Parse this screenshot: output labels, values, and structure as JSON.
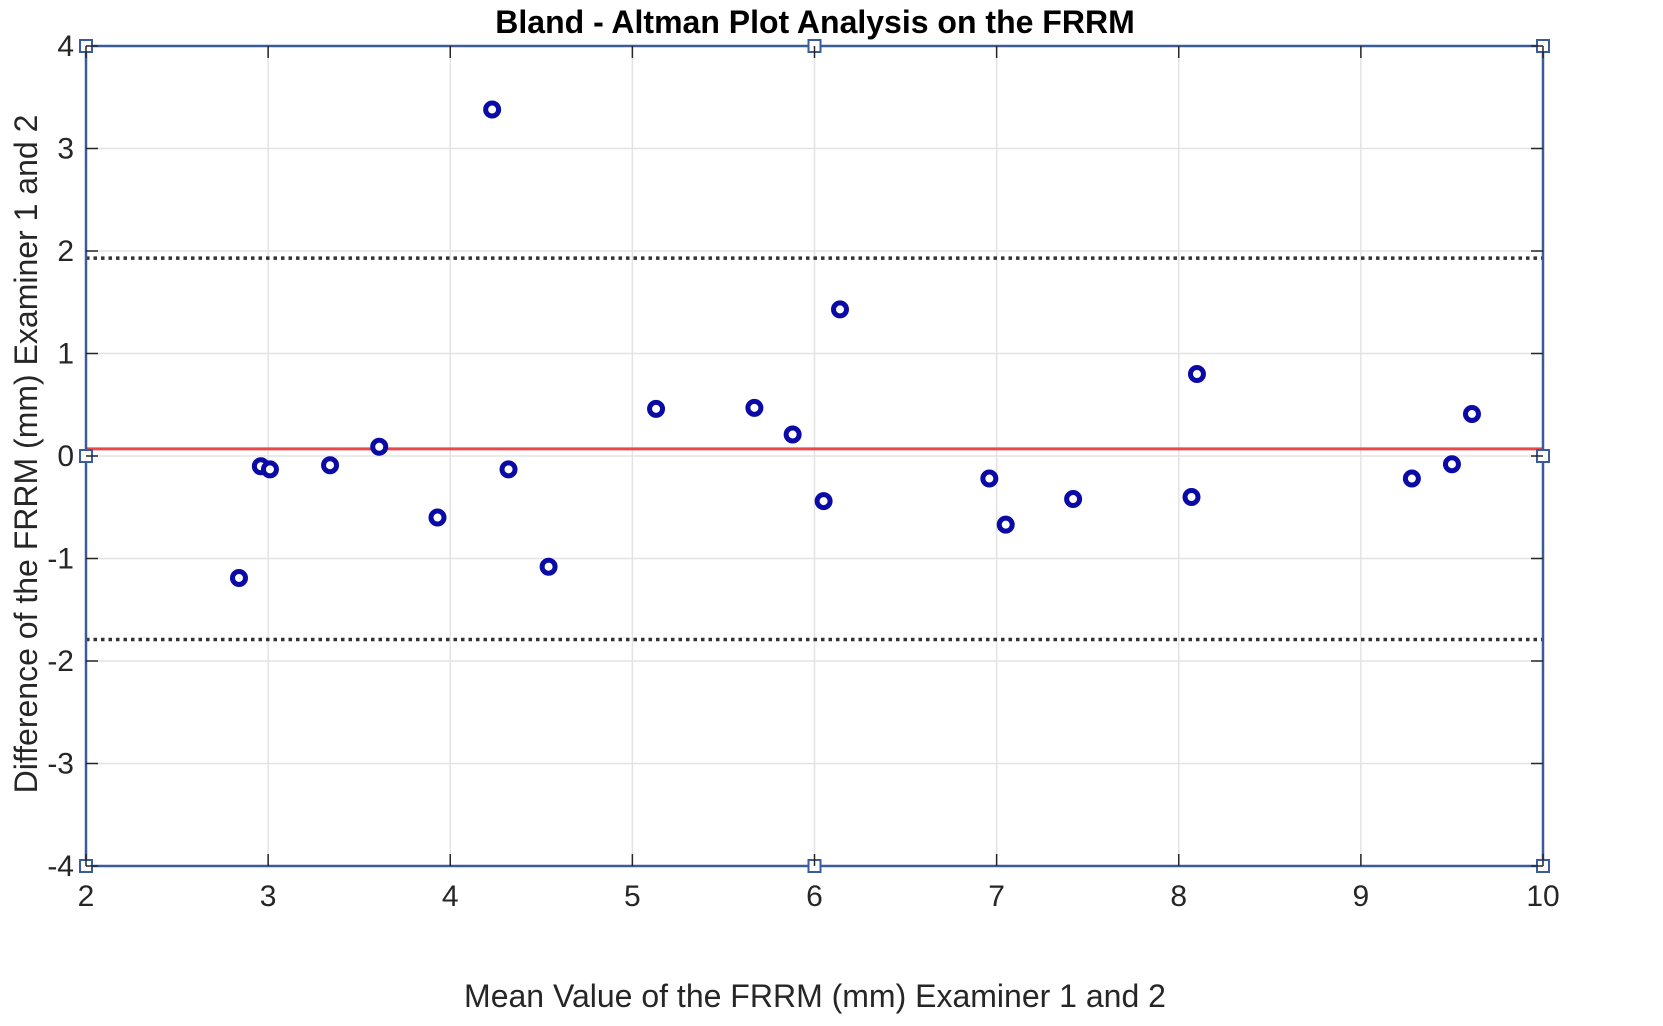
{
  "chart_data": {
    "type": "scatter",
    "title": "Bland - Altman Plot Analysis on the FRRM",
    "xlabel": "Mean Value of the FRRM (mm) Examiner 1 and 2",
    "ylabel": "Difference of the FRRM (mm) Examiner 1 and 2",
    "xlim": [
      2,
      10
    ],
    "ylim": [
      -4,
      4
    ],
    "xticks": [
      2,
      3,
      4,
      5,
      6,
      7,
      8,
      9,
      10
    ],
    "yticks": [
      -4,
      -3,
      -2,
      -1,
      0,
      1,
      2,
      3,
      4
    ],
    "grid": true,
    "legend": "none",
    "series": [
      {
        "x": [
          2.84,
          2.96,
          3.01,
          3.34,
          3.61,
          3.93,
          4.23,
          4.32,
          4.54,
          5.13,
          5.67,
          5.88,
          6.05,
          6.14,
          6.96,
          7.05,
          7.42,
          8.07,
          8.1,
          9.28,
          9.5,
          9.61
        ],
        "y": [
          -1.19,
          -0.1,
          -0.13,
          -0.09,
          0.09,
          -0.6,
          3.38,
          -0.13,
          -1.08,
          0.46,
          0.47,
          0.21,
          -0.44,
          1.43,
          -0.22,
          -0.67,
          -0.42,
          -0.4,
          0.8,
          -0.22,
          -0.08,
          0.41
        ]
      }
    ],
    "reference_lines": [
      {
        "kind": "mean",
        "y": 0.07,
        "style": "solid",
        "color": "#e8484a"
      },
      {
        "kind": "upper-limit",
        "y": 1.93,
        "style": "dotted",
        "color": "#333333"
      },
      {
        "kind": "lower-limit",
        "y": -1.79,
        "style": "dotted",
        "color": "#333333"
      }
    ],
    "colors": {
      "marker": "#0a0aa6",
      "axes_frame": "#3a5c9c",
      "grid": "#e3e3e3",
      "tick_text": "#262626"
    }
  }
}
